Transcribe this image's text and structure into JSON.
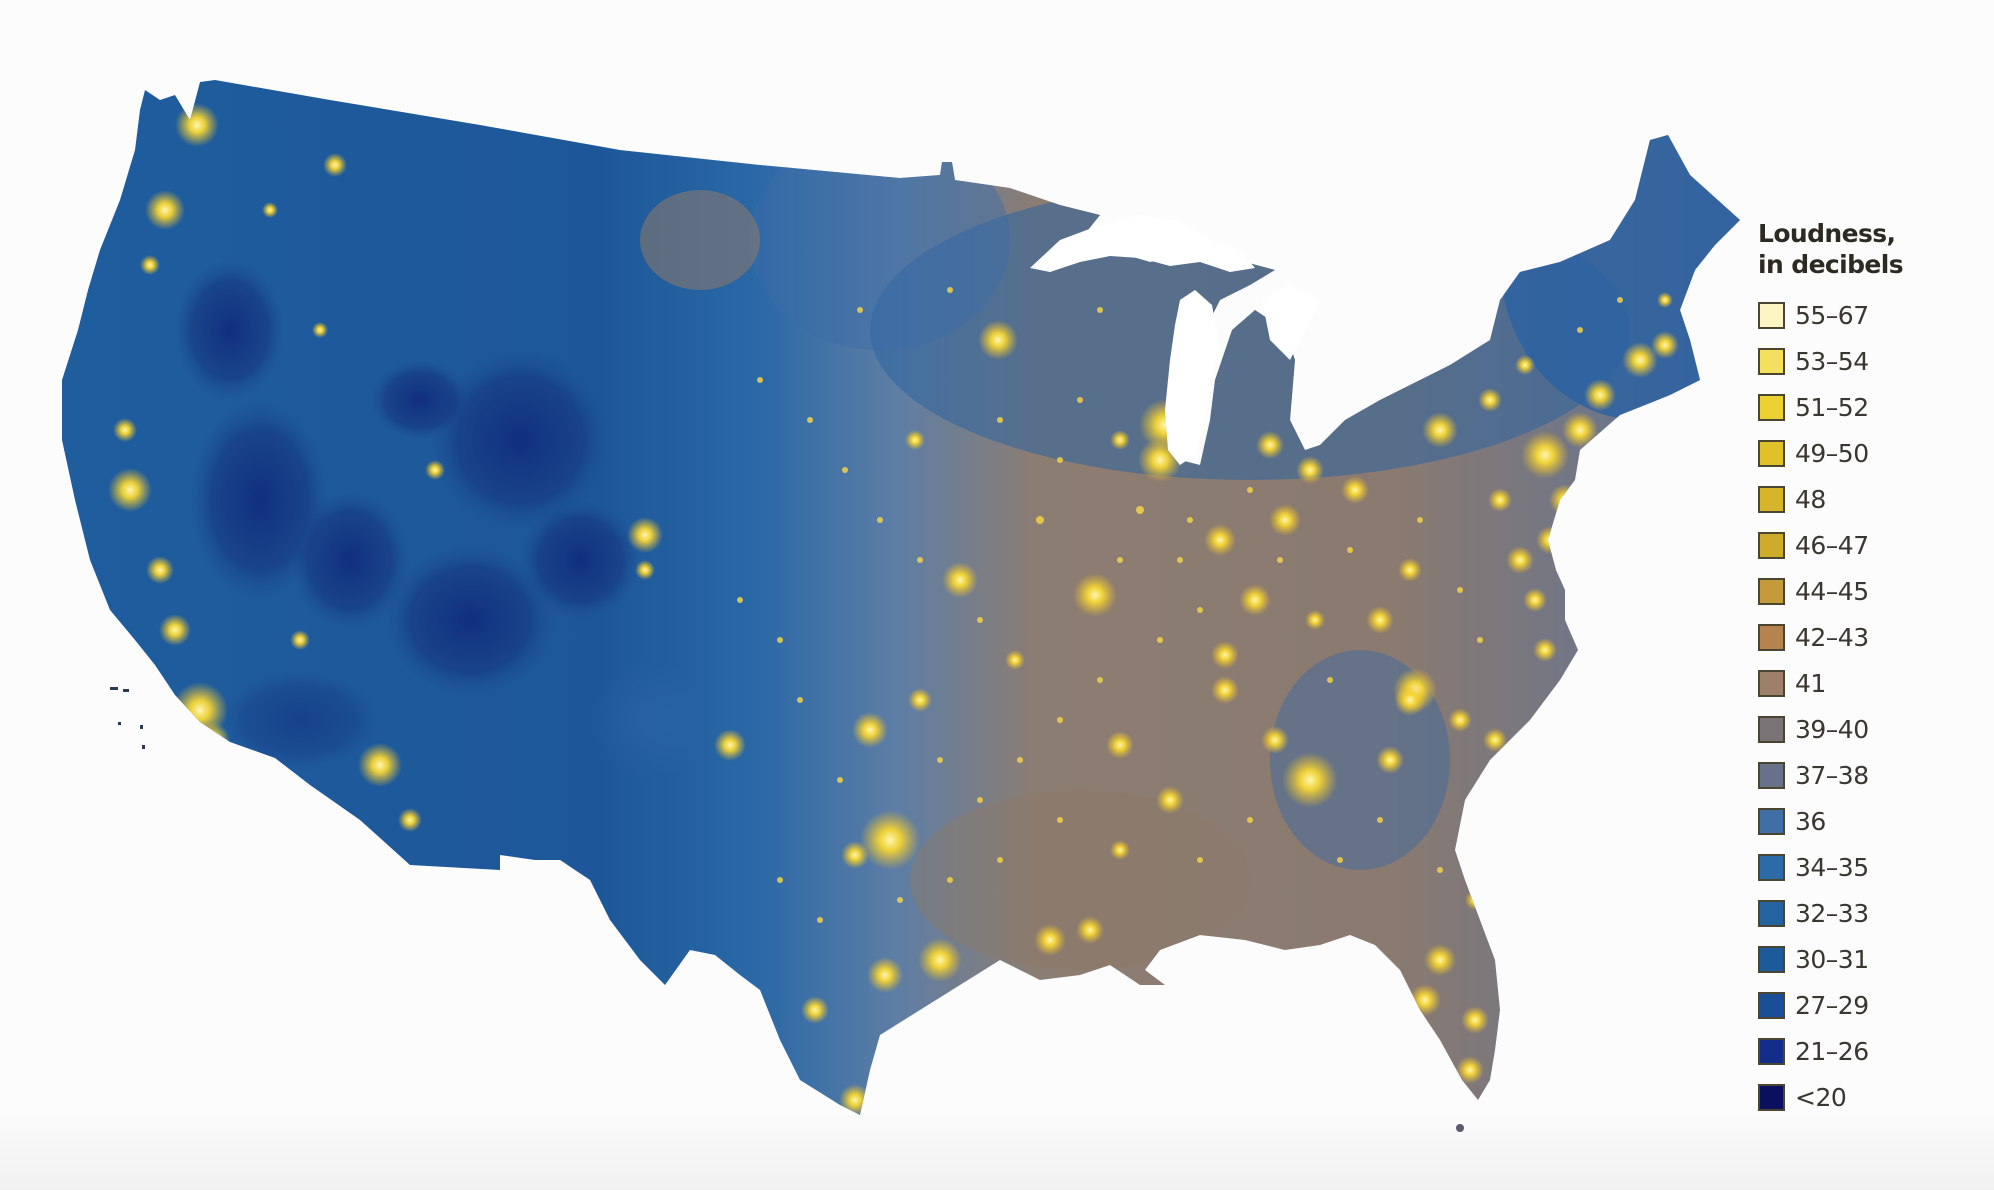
{
  "legend": {
    "title_line1": "Loudness,",
    "title_line2": "in decibels",
    "items": [
      {
        "label": "55–67",
        "color": "#fdf6c4"
      },
      {
        "label": "53–54",
        "color": "#f4e05e"
      },
      {
        "label": "51–52",
        "color": "#ecd132"
      },
      {
        "label": "49–50",
        "color": "#e0c12a"
      },
      {
        "label": "48",
        "color": "#d6b42c"
      },
      {
        "label": "46–47",
        "color": "#ceab2a"
      },
      {
        "label": "44–45",
        "color": "#c49a3a"
      },
      {
        "label": "42–43",
        "color": "#b5834f"
      },
      {
        "label": "41",
        "color": "#9e7f6a"
      },
      {
        "label": "39–40",
        "color": "#7c7377"
      },
      {
        "label": "37–38",
        "color": "#67728a"
      },
      {
        "label": "36",
        "color": "#3f6fa5"
      },
      {
        "label": "34–35",
        "color": "#2d6aa8"
      },
      {
        "label": "32–33",
        "color": "#2462a2"
      },
      {
        "label": "30–31",
        "color": "#1d5a9b"
      },
      {
        "label": "27–29",
        "color": "#1a4f96"
      },
      {
        "label": "21–26",
        "color": "#122d8a"
      },
      {
        "label": "<20",
        "color": "#0a0f5e"
      }
    ]
  },
  "map": {
    "subject": "Contiguous United States noise levels",
    "colors": {
      "quiet_west": "#1f5c9c",
      "quietest": "#102a78",
      "transition": "#5f7ea6",
      "east_base": "#8b7a6e",
      "city_glow": "#f6d636",
      "city_core": "#fff2a0",
      "water": "#ffffff"
    }
  }
}
